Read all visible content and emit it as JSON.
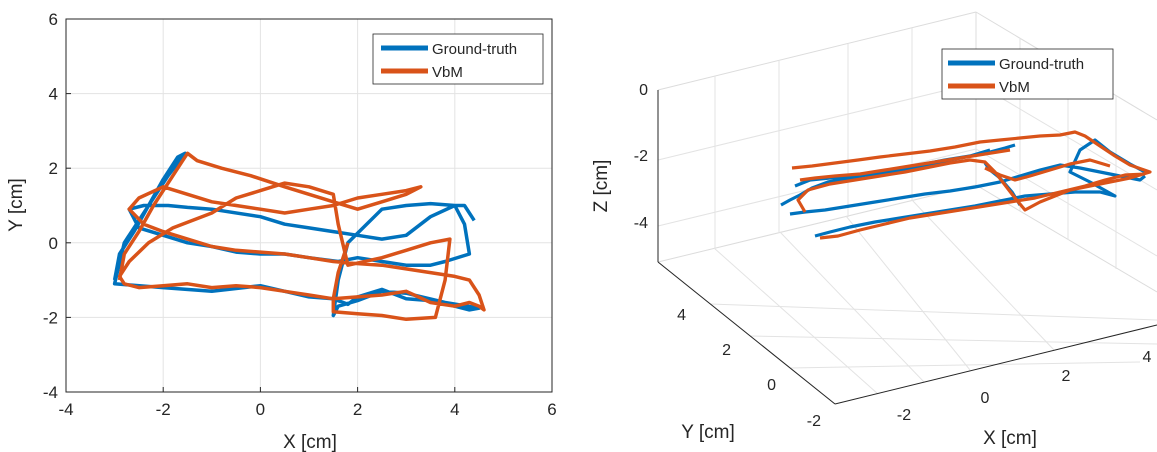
{
  "colors": {
    "ground_truth": "#0072BD",
    "vbm": "#D95319",
    "grid": "#e3e3e3",
    "pane_grid": "#dcdcdc",
    "axis": "#262626"
  },
  "chart_data": [
    {
      "type": "line",
      "title": "",
      "xlabel": "X [cm]",
      "ylabel": "Y [cm]",
      "xlim": [
        -4,
        6
      ],
      "ylim": [
        -4,
        6
      ],
      "xticks": [
        "-4",
        "-2",
        "0",
        "2",
        "4",
        "6"
      ],
      "yticks": [
        "-4",
        "-2",
        "0",
        "2",
        "4",
        "6"
      ],
      "grid": true,
      "legend": [
        "Ground-truth",
        "VbM"
      ],
      "legend_position": "top-right",
      "series": [
        {
          "name": "Ground-truth",
          "x": [
            -3.0,
            -2.9,
            -2.6,
            -2.3,
            -2.0,
            -1.7,
            -1.55,
            -1.9,
            -2.2,
            -2.5,
            -2.8,
            -3.0,
            -2.0,
            -1.0,
            0.0,
            1.0,
            1.5,
            1.8,
            2.0,
            2.5,
            3.0,
            3.5,
            4.0,
            4.3,
            4.5,
            3.8,
            3.0,
            2.5,
            2.0,
            1.6,
            1.5,
            1.6,
            1.8,
            2.5,
            3.0,
            3.5,
            4.0,
            4.2,
            4.3,
            3.8,
            3.5,
            3.0,
            2.5,
            2.0,
            1.6,
            1.0,
            0.5,
            0.0,
            -0.5,
            -1.0,
            -1.5,
            -2.0,
            -2.5,
            -2.7,
            -2.4,
            -1.9,
            -1.5,
            -1.0,
            0.0,
            0.5,
            1.0,
            1.5,
            2.0,
            2.5,
            3.0,
            3.5,
            4.0,
            4.2,
            4.4
          ],
          "y": [
            -1.0,
            -0.3,
            0.3,
            1.0,
            1.7,
            2.3,
            2.4,
            1.8,
            1.2,
            0.6,
            0.0,
            -1.1,
            -1.2,
            -1.3,
            -1.15,
            -1.45,
            -1.5,
            -1.65,
            -1.45,
            -1.25,
            -1.5,
            -1.55,
            -1.7,
            -1.8,
            -1.75,
            -1.6,
            -1.35,
            -1.3,
            -1.55,
            -1.7,
            -1.95,
            -1.0,
            0.0,
            0.9,
            1.0,
            1.05,
            1.0,
            0.5,
            -0.3,
            -0.5,
            -0.6,
            -0.6,
            -0.5,
            -0.4,
            -0.5,
            -0.4,
            -0.3,
            -0.3,
            -0.25,
            -0.1,
            0.0,
            0.2,
            0.4,
            0.9,
            1.0,
            1.0,
            0.95,
            0.9,
            0.7,
            0.5,
            0.4,
            0.3,
            0.2,
            0.1,
            0.2,
            0.7,
            1.0,
            1.0,
            0.6
          ]
        },
        {
          "name": "VbM",
          "x": [
            -2.9,
            -2.8,
            -2.5,
            -2.2,
            -1.9,
            -1.6,
            -1.5,
            -1.3,
            -0.8,
            -0.2,
            0.5,
            1.0,
            1.5,
            2.0,
            2.5,
            3.0,
            3.3,
            3.0,
            2.5,
            2.0,
            1.5,
            1.0,
            0.5,
            0.0,
            -0.5,
            -1.0,
            -1.5,
            -2.0,
            -2.5,
            -2.7,
            -2.4,
            -2.0,
            -1.5,
            -1.0,
            -0.5,
            0.0,
            0.5,
            1.0,
            1.5,
            1.9,
            2.5,
            3.0,
            3.5,
            4.0,
            4.3,
            4.5,
            4.6,
            4.5,
            4.3,
            4.0,
            3.5,
            3.0,
            2.5,
            2.0,
            1.5,
            1.0,
            0.5,
            0.0,
            -0.5,
            -1.0,
            -1.5,
            -2.0,
            -2.5,
            -2.8,
            -2.9,
            -2.7,
            -2.3,
            -1.8,
            -1.0,
            -0.5,
            0.0,
            0.5,
            1.0,
            1.5,
            1.6,
            1.8,
            2.5,
            3.0,
            3.5,
            3.9,
            3.8,
            3.6,
            3.0,
            2.5,
            2.0,
            1.5,
            1.5,
            1.6,
            1.8
          ],
          "y": [
            -1.0,
            -0.3,
            0.3,
            1.0,
            1.6,
            2.2,
            2.4,
            2.2,
            2.0,
            1.8,
            1.5,
            1.3,
            1.1,
            0.9,
            1.1,
            1.3,
            1.5,
            1.4,
            1.3,
            1.2,
            1.0,
            0.9,
            0.8,
            0.9,
            1.0,
            1.1,
            1.3,
            1.5,
            1.2,
            0.9,
            0.5,
            0.3,
            0.1,
            -0.1,
            -0.2,
            -0.25,
            -0.3,
            -0.4,
            -0.5,
            -0.55,
            -0.6,
            -0.7,
            -0.8,
            -0.9,
            -1.0,
            -1.4,
            -1.8,
            -1.7,
            -1.6,
            -1.7,
            -1.6,
            -1.3,
            -1.4,
            -1.45,
            -1.5,
            -1.4,
            -1.3,
            -1.2,
            -1.15,
            -1.2,
            -1.1,
            -1.15,
            -1.2,
            -1.1,
            -0.9,
            -0.5,
            0.0,
            0.4,
            0.8,
            1.2,
            1.4,
            1.6,
            1.5,
            1.3,
            0.5,
            -0.6,
            -0.4,
            -0.2,
            0.0,
            0.1,
            -1.0,
            -2.0,
            -2.05,
            -1.95,
            -1.9,
            -1.85,
            -1.5,
            -0.8,
            0.0
          ]
        }
      ]
    },
    {
      "type": "line",
      "title": "",
      "xlabel": "X [cm]",
      "ylabel": "Y [cm]",
      "zlabel": "Z [cm]",
      "projection": "3d",
      "xticks": [
        "-2",
        "0",
        "2",
        "4"
      ],
      "yticks": [
        "-2",
        "0",
        "2",
        "4"
      ],
      "zticks": [
        "0",
        "-2",
        "-4"
      ],
      "grid": true,
      "legend": [
        "Ground-truth",
        "VbM"
      ],
      "legend_position": "top-right"
    }
  ]
}
